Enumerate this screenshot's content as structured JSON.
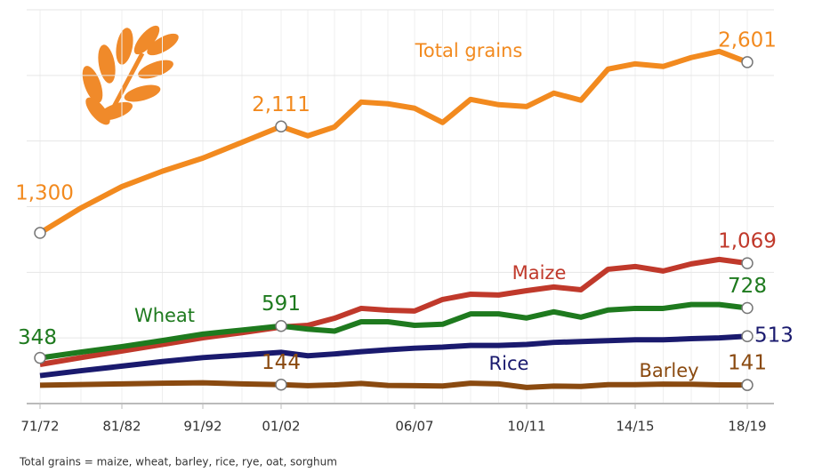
{
  "chart_data": {
    "type": "line",
    "x": [
      1971,
      1976,
      1981,
      1986,
      1991,
      1996,
      2001,
      2002,
      2003,
      2004,
      2005,
      2006,
      2007,
      2008,
      2009,
      2010,
      2011,
      2012,
      2013,
      2014,
      2015,
      2016,
      2017,
      2018
    ],
    "xticks": [
      {
        "value": 1971,
        "label": "71/72"
      },
      {
        "value": 1981,
        "label": "81/82"
      },
      {
        "value": 1991,
        "label": "91/92"
      },
      {
        "value": 2001,
        "label": "01/02"
      },
      {
        "value": 2006,
        "label": "06/07"
      },
      {
        "value": 2010,
        "label": "10/11"
      },
      {
        "value": 2014,
        "label": "14/15"
      },
      {
        "value": 2018,
        "label": "18/19"
      }
    ],
    "ylim": [
      0,
      3000
    ],
    "yticks": [
      0,
      500,
      1000,
      1500,
      2000,
      2500,
      3000
    ],
    "grid": true,
    "series": [
      {
        "name": "Total grains",
        "color": "#f28a1f",
        "values": [
          1300,
          1490,
          1653,
          1770,
          1870,
          1990,
          2111,
          2040,
          2107,
          2297,
          2284,
          2250,
          2141,
          2317,
          2277,
          2263,
          2365,
          2311,
          2548,
          2588,
          2568,
          2636,
          2683,
          2601
        ],
        "value_labels": [
          "1,300",
          null,
          null,
          null,
          null,
          null,
          "2,111",
          null,
          null,
          null,
          null,
          null,
          null,
          null,
          null,
          null,
          null,
          null,
          null,
          null,
          null,
          null,
          null,
          "2,601"
        ],
        "markers": [
          0,
          6,
          23
        ]
      },
      {
        "name": "Maize",
        "color": "#c0392b",
        "values": [
          298,
          350,
          400,
          450,
          501,
          540,
          583,
          596,
          650,
          725,
          711,
          705,
          793,
          833,
          827,
          860,
          888,
          867,
          1023,
          1044,
          1010,
          1064,
          1098,
          1069
        ],
        "value_labels": [
          null,
          null,
          null,
          null,
          null,
          null,
          null,
          null,
          null,
          null,
          null,
          null,
          null,
          null,
          null,
          null,
          null,
          null,
          null,
          null,
          null,
          null,
          null,
          "1,069"
        ],
        "markers": [
          23
        ]
      },
      {
        "name": "Wheat",
        "color": "#1e7a1e",
        "values": [
          348,
          392,
          434,
          480,
          529,
          560,
          591,
          567,
          552,
          623,
          623,
          596,
          604,
          683,
          683,
          652,
          699,
          658,
          713,
          725,
          725,
          754,
          754,
          728
        ],
        "markers": [
          0,
          6,
          23
        ]
      },
      {
        "name": "Rice",
        "color": "#1a1a6e",
        "values": [
          213,
          250,
          285,
          320,
          350,
          370,
          390,
          364,
          378,
          395,
          410,
          422,
          430,
          443,
          443,
          450,
          466,
          472,
          479,
          486,
          486,
          494,
          500,
          513
        ],
        "markers": [
          23
        ]
      },
      {
        "name": "Barley",
        "color": "#8a4a10",
        "values": [
          140,
          145,
          150,
          155,
          158,
          150,
          144,
          136,
          142,
          153,
          138,
          136,
          134,
          155,
          150,
          123,
          133,
          130,
          144,
          144,
          148,
          147,
          142,
          141
        ],
        "markers": [
          6,
          23
        ]
      }
    ]
  },
  "footnote": "Total grains = maize, wheat, barley, rice, rye, oat, sorghum"
}
